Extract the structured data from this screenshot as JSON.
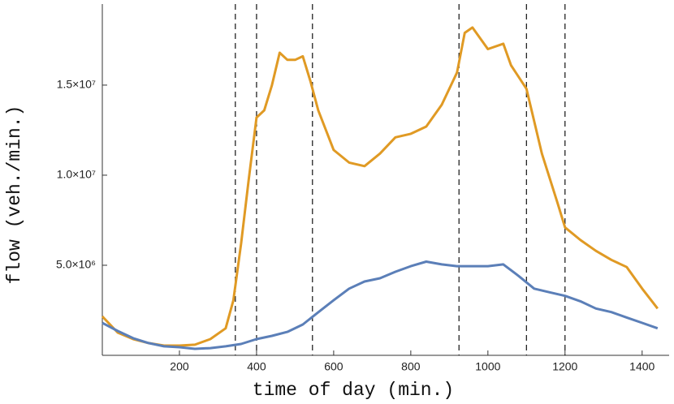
{
  "chart_data": {
    "type": "line",
    "x_label": "time of day (min.)",
    "y_label": "flow (veh./min.)",
    "xlim": [
      0,
      1470
    ],
    "ylim": [
      0,
      19500000
    ],
    "xticks": [
      200,
      400,
      600,
      800,
      1000,
      1200,
      1400
    ],
    "yticks": [
      {
        "value": 5000000,
        "label": "5.0×10⁶"
      },
      {
        "value": 10000000,
        "label": "1.0×10⁷"
      },
      {
        "value": 15000000,
        "label": "1.5×10⁷"
      }
    ],
    "vlines": [
      345,
      400,
      545,
      925,
      1100,
      1200
    ],
    "series": [
      {
        "color": "#e09a24",
        "x": [
          0,
          40,
          80,
          120,
          160,
          200,
          240,
          280,
          320,
          340,
          360,
          380,
          400,
          420,
          440,
          460,
          480,
          500,
          520,
          540,
          560,
          600,
          640,
          680,
          720,
          760,
          800,
          840,
          880,
          920,
          940,
          960,
          1000,
          1040,
          1060,
          1100,
          1140,
          1180,
          1200,
          1240,
          1280,
          1320,
          1360,
          1400,
          1440
        ],
        "values": [
          2160000,
          1260000,
          900000,
          680000,
          540000,
          540000,
          590000,
          900000,
          1500000,
          3060000,
          6200000,
          9800000,
          13200000,
          13600000,
          15000000,
          16800000,
          16400000,
          16400000,
          16600000,
          15200000,
          13600000,
          11400000,
          10700000,
          10500000,
          11200000,
          12100000,
          12300000,
          12700000,
          13900000,
          15700000,
          17900000,
          18200000,
          17000000,
          17300000,
          16100000,
          14800000,
          11200000,
          8500000,
          7100000,
          6400000,
          5800000,
          5300000,
          4900000,
          3700000,
          2600000
        ]
      },
      {
        "color": "#5b7fb8",
        "x": [
          0,
          40,
          80,
          120,
          160,
          200,
          240,
          280,
          320,
          360,
          400,
          440,
          480,
          520,
          560,
          600,
          640,
          680,
          720,
          760,
          800,
          840,
          880,
          920,
          960,
          1000,
          1040,
          1080,
          1120,
          1160,
          1200,
          1240,
          1280,
          1320,
          1360,
          1400,
          1440
        ],
        "values": [
          1800000,
          1350000,
          950000,
          680000,
          500000,
          450000,
          360000,
          400000,
          500000,
          630000,
          900000,
          1080000,
          1300000,
          1710000,
          2390000,
          3060000,
          3700000,
          4100000,
          4280000,
          4640000,
          4950000,
          5200000,
          5050000,
          4950000,
          4950000,
          4950000,
          5050000,
          4400000,
          3700000,
          3500000,
          3300000,
          3000000,
          2600000,
          2400000,
          2100000,
          1800000,
          1500000
        ]
      }
    ]
  }
}
